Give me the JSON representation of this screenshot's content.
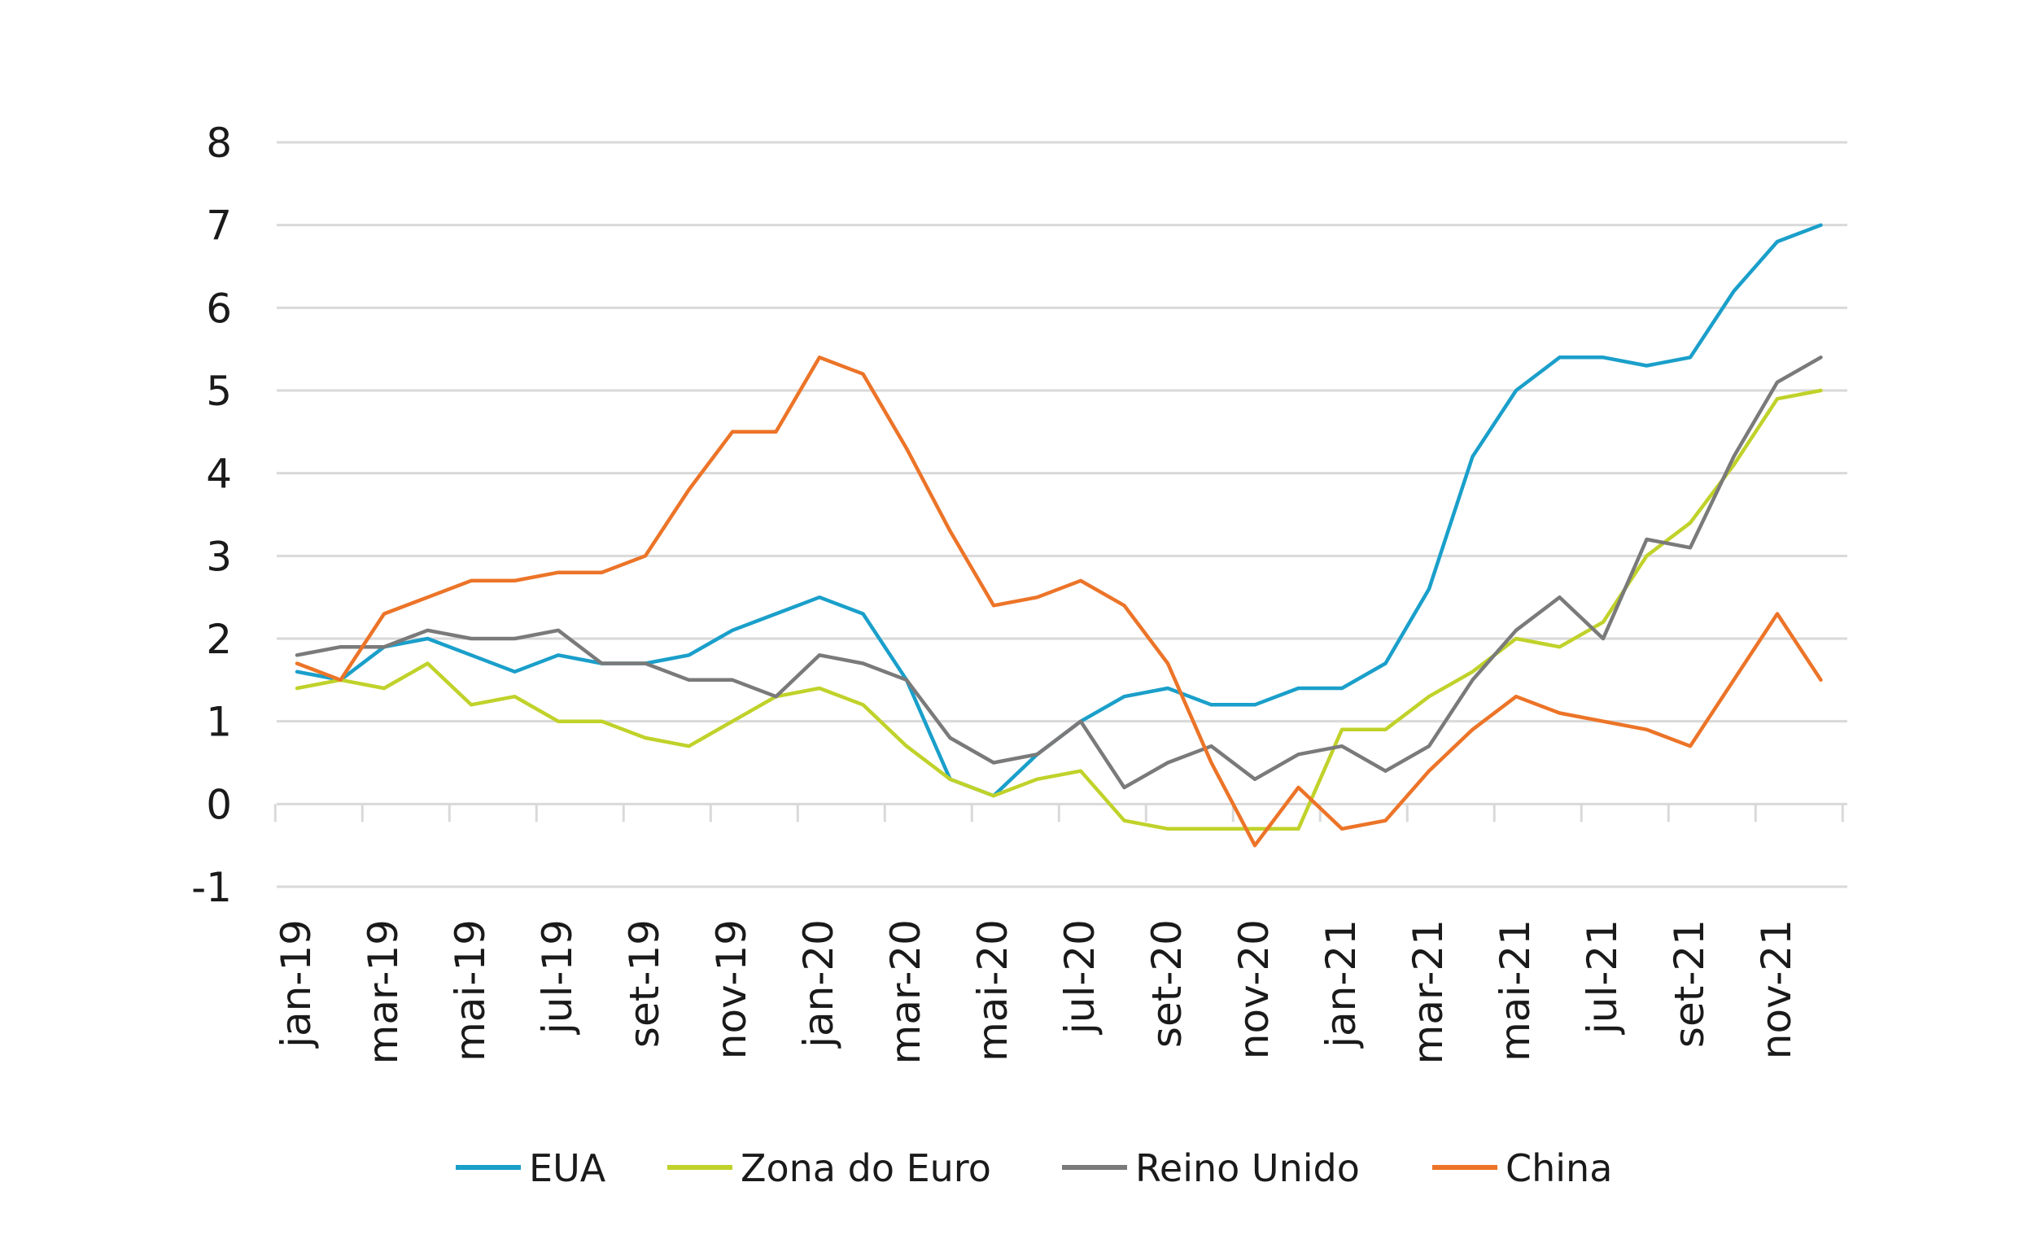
{
  "chart_data": {
    "type": "line",
    "title": "",
    "xlabel": "",
    "ylabel": "",
    "ylim": [
      -1,
      8
    ],
    "yticks": [
      -1,
      0,
      1,
      2,
      3,
      4,
      5,
      6,
      7,
      8
    ],
    "grid": "horizontal",
    "legend_position": "bottom",
    "x": [
      "jan-19",
      "fev-19",
      "mar-19",
      "abr-19",
      "mai-19",
      "jun-19",
      "jul-19",
      "ago-19",
      "set-19",
      "out-19",
      "nov-19",
      "dez-19",
      "jan-20",
      "fev-20",
      "mar-20",
      "abr-20",
      "mai-20",
      "jun-20",
      "jul-20",
      "ago-20",
      "set-20",
      "out-20",
      "nov-20",
      "dez-20",
      "jan-21",
      "fev-21",
      "mar-21",
      "abr-21",
      "mai-21",
      "jun-21",
      "jul-21",
      "ago-21",
      "set-21",
      "out-21",
      "nov-21",
      "dez-21"
    ],
    "xtick_labels": [
      "jan-19",
      "mar-19",
      "mai-19",
      "jul-19",
      "set-19",
      "nov-19",
      "jan-20",
      "mar-20",
      "mai-20",
      "jul-20",
      "set-20",
      "nov-20",
      "jan-21",
      "mar-21",
      "mai-21",
      "jul-21",
      "set-21",
      "nov-21"
    ],
    "series": [
      {
        "name": "EUA",
        "color": "#1a9fca",
        "values": [
          1.6,
          1.5,
          1.9,
          2.0,
          1.8,
          1.6,
          1.8,
          1.7,
          1.7,
          1.8,
          2.1,
          2.3,
          2.5,
          2.3,
          1.5,
          0.3,
          0.1,
          0.6,
          1.0,
          1.3,
          1.4,
          1.2,
          1.2,
          1.4,
          1.4,
          1.7,
          2.6,
          4.2,
          5.0,
          5.4,
          5.4,
          5.3,
          5.4,
          6.2,
          6.8,
          7.0
        ]
      },
      {
        "name": "Zona do Euro",
        "color": "#c0d22a",
        "values": [
          1.4,
          1.5,
          1.4,
          1.7,
          1.2,
          1.3,
          1.0,
          1.0,
          0.8,
          0.7,
          1.0,
          1.3,
          1.4,
          1.2,
          0.7,
          0.3,
          0.1,
          0.3,
          0.4,
          -0.2,
          -0.3,
          -0.3,
          -0.3,
          -0.3,
          0.9,
          0.9,
          1.3,
          1.6,
          2.0,
          1.9,
          2.2,
          3.0,
          3.4,
          4.1,
          4.9,
          5.0
        ]
      },
      {
        "name": "Reino Unido",
        "color": "#7a7a7a",
        "values": [
          1.8,
          1.9,
          1.9,
          2.1,
          2.0,
          2.0,
          2.1,
          1.7,
          1.7,
          1.5,
          1.5,
          1.3,
          1.8,
          1.7,
          1.5,
          0.8,
          0.5,
          0.6,
          1.0,
          0.2,
          0.5,
          0.7,
          0.3,
          0.6,
          0.7,
          0.4,
          0.7,
          1.5,
          2.1,
          2.5,
          2.0,
          3.2,
          3.1,
          4.2,
          5.1,
          5.4
        ]
      },
      {
        "name": "China",
        "color": "#ec7428",
        "values": [
          1.7,
          1.5,
          2.3,
          2.5,
          2.7,
          2.7,
          2.8,
          2.8,
          3.0,
          3.8,
          4.5,
          4.5,
          5.4,
          5.2,
          4.3,
          3.3,
          2.4,
          2.5,
          2.7,
          2.4,
          1.7,
          0.5,
          -0.5,
          0.2,
          -0.3,
          -0.2,
          0.4,
          0.9,
          1.3,
          1.1,
          1.0,
          0.9,
          0.7,
          1.5,
          2.3,
          1.5
        ]
      }
    ]
  }
}
